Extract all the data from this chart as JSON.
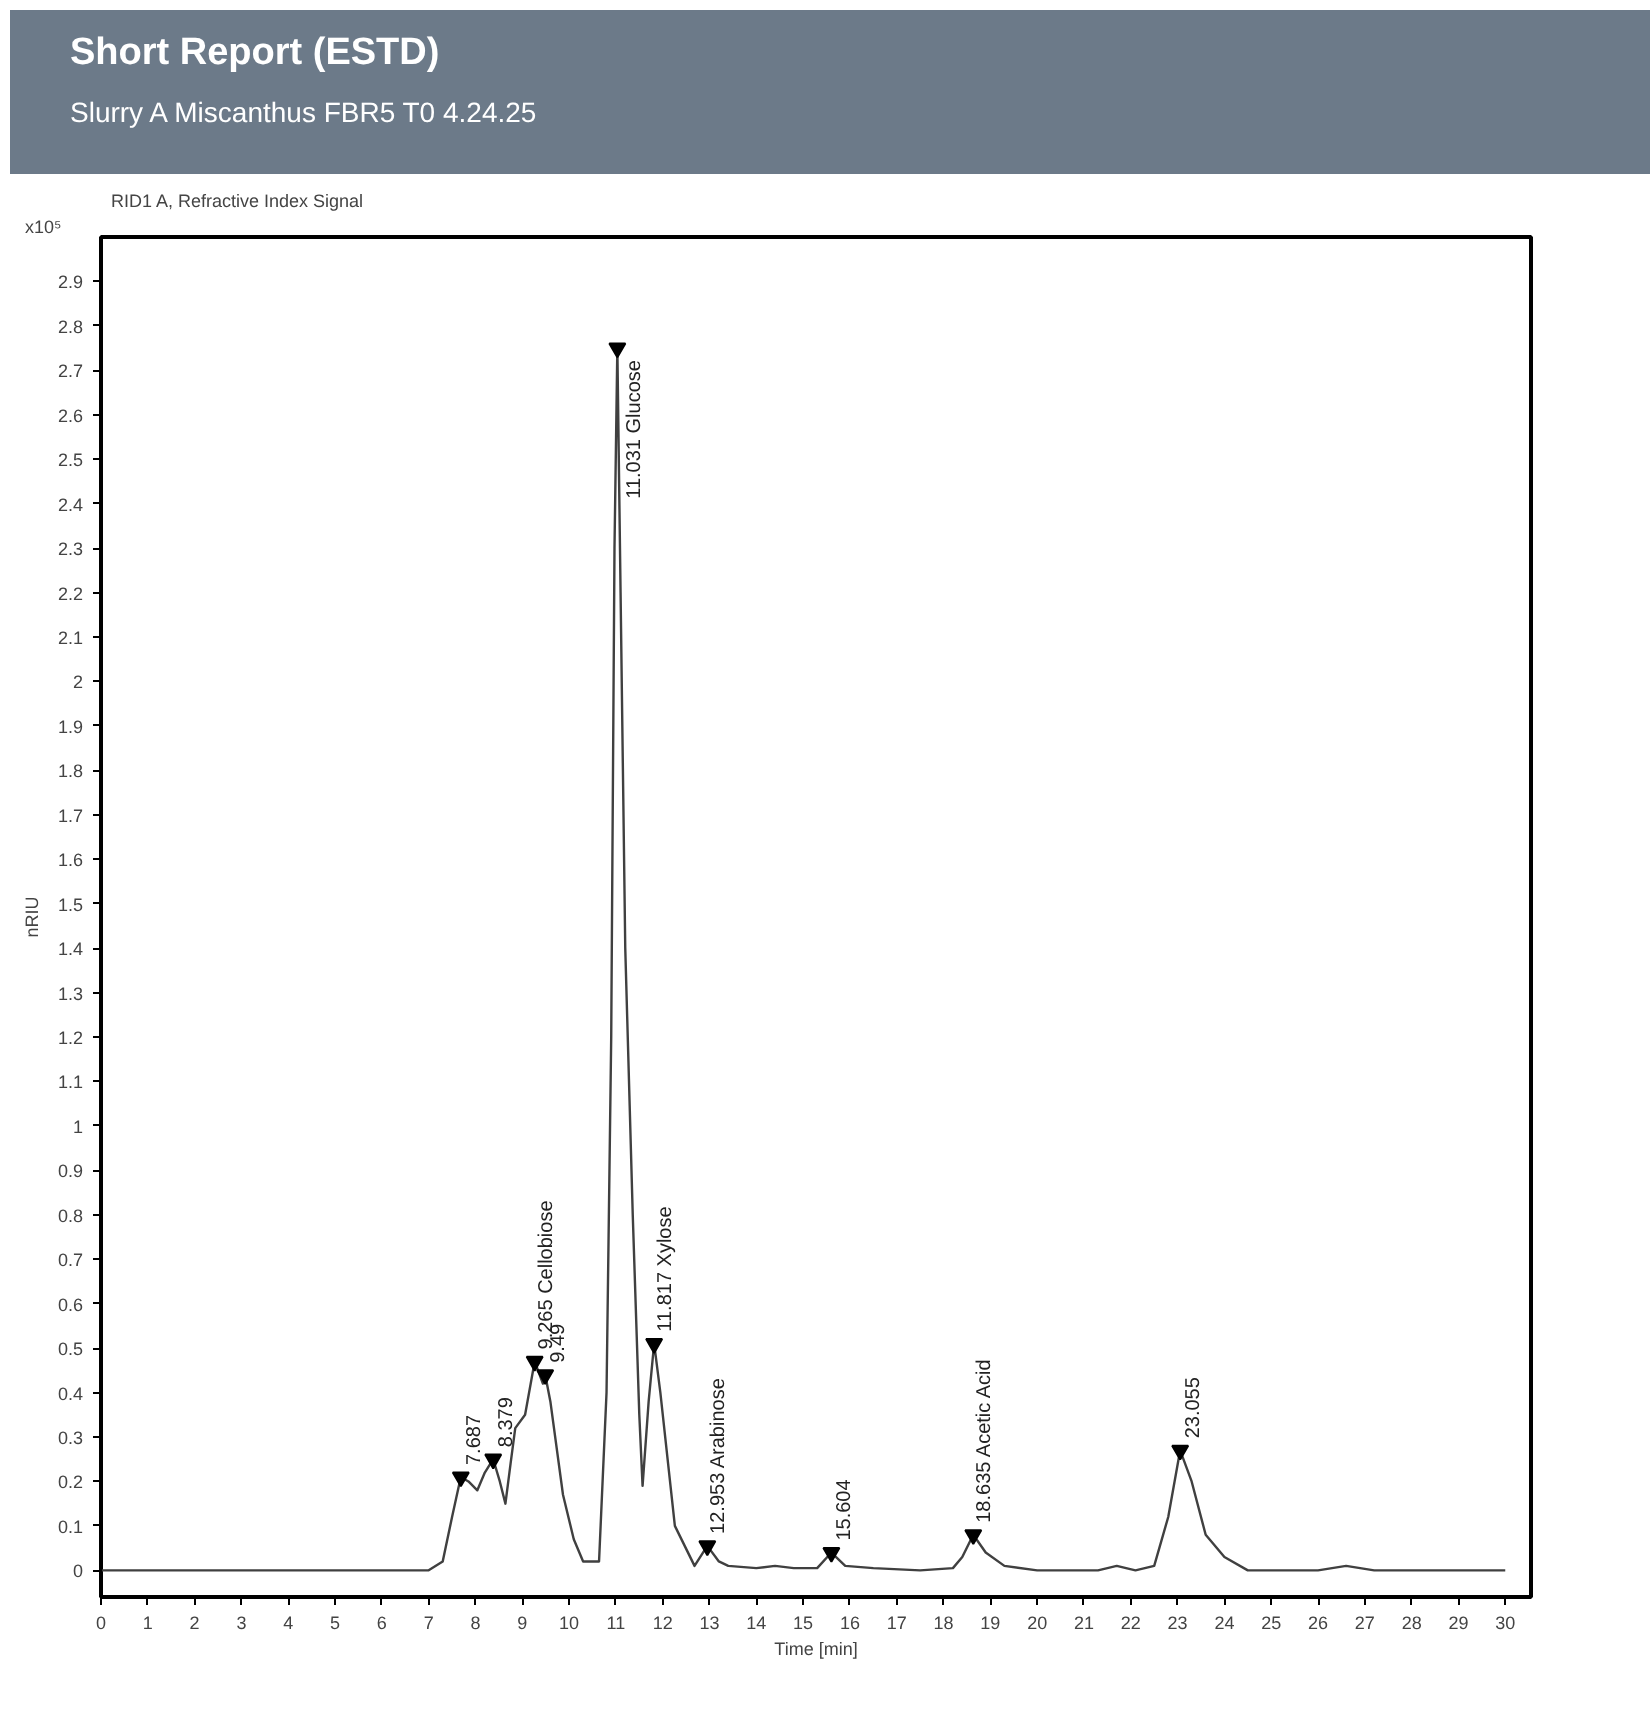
{
  "chart_data": {
    "type": "line",
    "title": "Short Report (ESTD)",
    "subtitle": "Slurry A Miscanthus FBR5 T0 4.24.25",
    "xlabel": "Time [min]",
    "ylabel": "nRIU",
    "annotations": [
      "RID1 A, Refractive Index Signal",
      "x10⁵",
      {
        "text": "7.687",
        "x": 7.687,
        "y": 0.21
      },
      {
        "text": "8.379",
        "x": 8.379,
        "y": 0.25
      },
      {
        "text": "9.265 Cellobiose",
        "x": 9.265,
        "y": 0.47
      },
      {
        "text": "9.49",
        "x": 9.49,
        "y": 0.44
      },
      {
        "text": "11.031 Glucose",
        "x": 11.031,
        "y": 2.75
      },
      {
        "text": "11.817 Xylose",
        "x": 11.817,
        "y": 0.51
      },
      {
        "text": "12.953 Arabinose",
        "x": 12.953,
        "y": 0.055
      },
      {
        "text": "15.604",
        "x": 15.604,
        "y": 0.04
      },
      {
        "text": "18.635 Acetic Acid",
        "x": 18.635,
        "y": 0.08
      },
      {
        "text": "23.055",
        "x": 23.055,
        "y": 0.27
      }
    ],
    "series": [
      {
        "color": "#404040",
        "x": [
          0,
          5,
          7.0,
          7.3,
          7.5,
          7.687,
          7.85,
          8.04,
          8.2,
          8.379,
          8.52,
          8.64,
          8.75,
          8.85,
          9.06,
          9.265,
          9.44,
          9.49,
          9.6,
          9.87,
          10.1,
          10.3,
          10.64,
          10.8,
          10.9,
          10.97,
          11.031,
          11.1,
          11.2,
          11.36,
          11.5,
          11.57,
          11.7,
          11.817,
          11.95,
          12.26,
          12.68,
          12.953,
          13.2,
          13.4,
          14.0,
          14.4,
          14.8,
          15.3,
          15.604,
          15.9,
          16.5,
          17.5,
          18.2,
          18.4,
          18.635,
          18.9,
          19.3,
          20,
          21.3,
          21.7,
          22.1,
          22.5,
          22.8,
          23.055,
          23.3,
          23.6,
          24.0,
          24.5,
          26.0,
          26.6,
          27.2,
          30
        ],
        "values": [
          0,
          0,
          0,
          0.02,
          0.12,
          0.21,
          0.2,
          0.18,
          0.22,
          0.25,
          0.2,
          0.15,
          0.24,
          0.32,
          0.35,
          0.47,
          0.42,
          0.44,
          0.38,
          0.17,
          0.07,
          0.02,
          0.02,
          0.4,
          1.2,
          2.3,
          2.75,
          2.2,
          1.4,
          0.8,
          0.35,
          0.19,
          0.38,
          0.51,
          0.4,
          0.1,
          0.01,
          0.055,
          0.02,
          0.01,
          0.005,
          0.01,
          0.005,
          0.005,
          0.04,
          0.01,
          0.005,
          0,
          0.005,
          0.03,
          0.08,
          0.04,
          0.01,
          0,
          0,
          0.01,
          0,
          0.01,
          0.12,
          0.27,
          0.2,
          0.08,
          0.03,
          0,
          0,
          0.01,
          0,
          0
        ]
      }
    ],
    "xlim": [
      0,
      30.55
    ],
    "ylim": [
      -0.06,
      3.0
    ],
    "xticks": [
      0,
      1,
      2,
      3,
      4,
      5,
      6,
      7,
      8,
      9,
      10,
      11,
      12,
      13,
      14,
      15,
      16,
      17,
      18,
      19,
      20,
      21,
      22,
      23,
      24,
      25,
      26,
      27,
      28,
      29,
      30
    ],
    "yticks": [
      0,
      0.1,
      0.2,
      0.3,
      0.4,
      0.5,
      0.6,
      0.7,
      0.8,
      0.9,
      1,
      1.1,
      1.2,
      1.3,
      1.4,
      1.5,
      1.6,
      1.7,
      1.8,
      1.9,
      2,
      2.1,
      2.2,
      2.3,
      2.4,
      2.5,
      2.6,
      2.7,
      2.8,
      2.9
    ],
    "grid": false
  }
}
